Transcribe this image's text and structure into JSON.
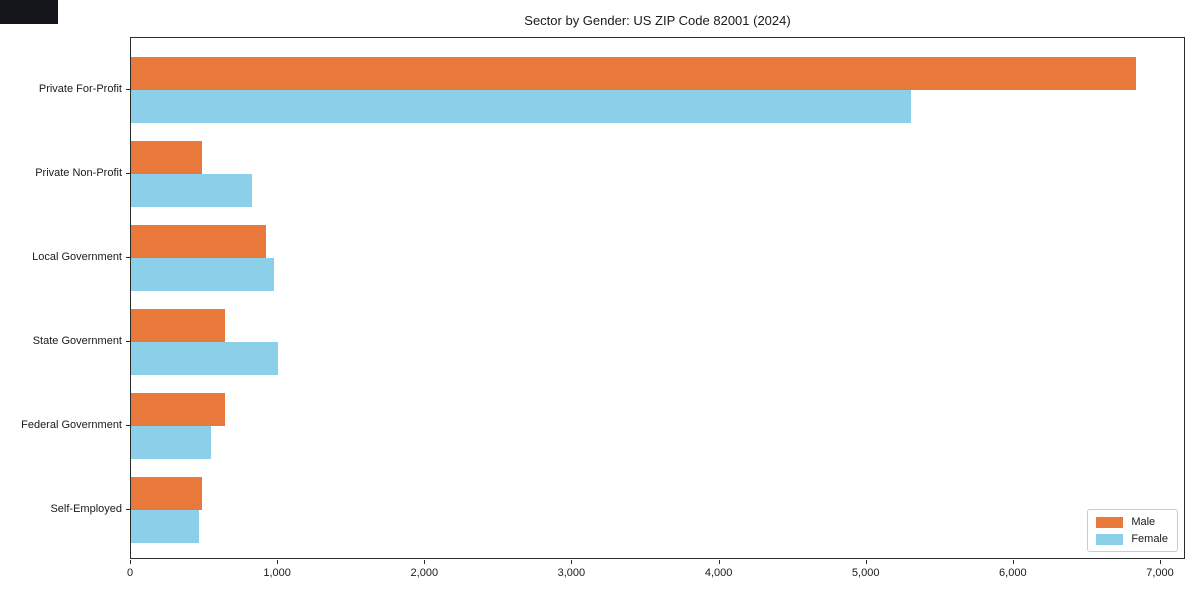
{
  "chart_data": {
    "type": "bar",
    "orientation": "horizontal",
    "title": "Sector by Gender: US ZIP Code 82001 (2024)",
    "categories": [
      "Private For-Profit",
      "Private Non-Profit",
      "Local Government",
      "State Government",
      "Federal Government",
      "Self-Employed"
    ],
    "series": [
      {
        "name": "Male",
        "color": "#e8793b",
        "values": [
          6830,
          480,
          920,
          640,
          640,
          480
        ]
      },
      {
        "name": "Female",
        "color": "#8bcfe8",
        "values": [
          5300,
          820,
          970,
          1000,
          540,
          460
        ]
      }
    ],
    "xlabel": "",
    "ylabel": "",
    "xlim": [
      0,
      7170
    ],
    "x_ticks": [
      0,
      1000,
      2000,
      3000,
      4000,
      5000,
      6000,
      7000
    ],
    "x_tick_labels": [
      "0",
      "1,000",
      "2,000",
      "3,000",
      "4,000",
      "5,000",
      "6,000",
      "7,000"
    ],
    "grid": false,
    "legend": {
      "position": "lower right"
    }
  }
}
